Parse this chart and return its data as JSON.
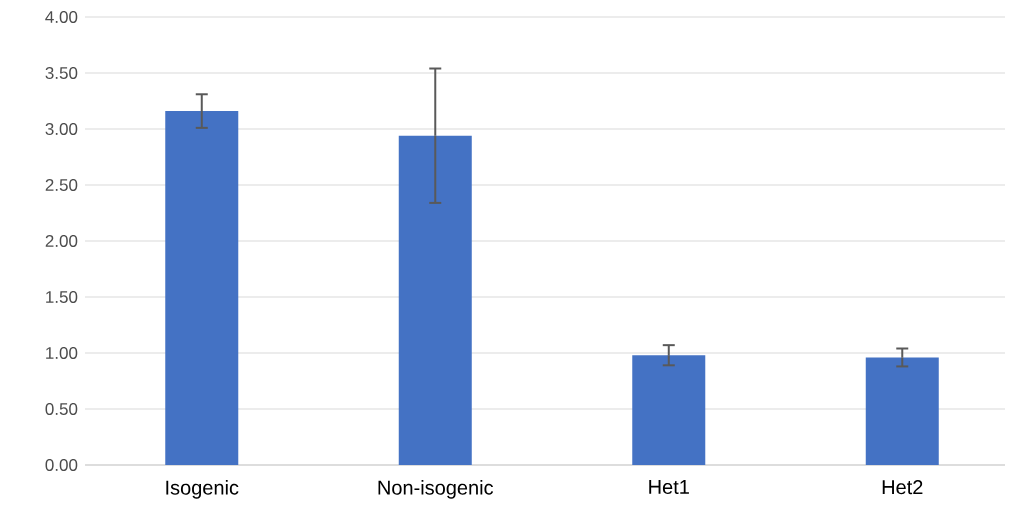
{
  "chart_data": {
    "type": "bar",
    "categories": [
      "Isogenic",
      "Non-isogenic",
      "Het1",
      "Het2"
    ],
    "values": [
      3.16,
      2.94,
      0.98,
      0.96
    ],
    "errors": [
      0.15,
      0.6,
      0.09,
      0.08
    ],
    "color": "#4472c4",
    "ylim": [
      0,
      4
    ],
    "yticks": [
      {
        "value": 0,
        "label": "0.00"
      },
      {
        "value": 0.5,
        "label": "0.50"
      },
      {
        "value": 1,
        "label": "1.00"
      },
      {
        "value": 1.5,
        "label": "1.50"
      },
      {
        "value": 2,
        "label": "2.00"
      },
      {
        "value": 2.5,
        "label": "2.50"
      },
      {
        "value": 3,
        "label": "3.00"
      },
      {
        "value": 3.5,
        "label": "3.50"
      },
      {
        "value": 4,
        "label": "4.00"
      }
    ],
    "grid": "y"
  }
}
